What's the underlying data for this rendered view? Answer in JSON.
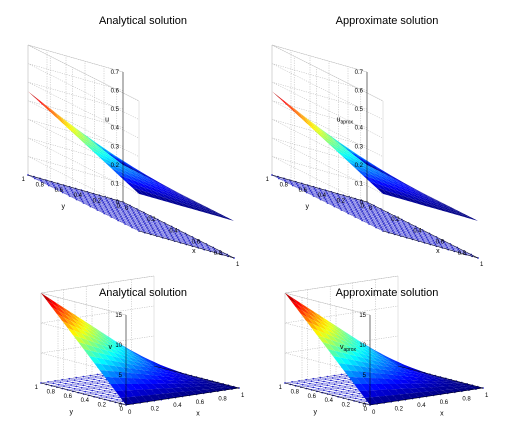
{
  "chart_data": [
    {
      "type": "surface",
      "title": "Analytical solution",
      "xlabel": "x",
      "ylabel": "y",
      "zlabel": "u",
      "xlim": [
        0,
        1
      ],
      "ylim": [
        0,
        1
      ],
      "zlim": [
        0,
        0.7
      ],
      "xticks": [
        "0",
        "0.2",
        "0.4",
        "0.6",
        "0.8",
        "1"
      ],
      "yticks": [
        "0",
        "0.2",
        "0.4",
        "0.6",
        "0.8",
        "1"
      ],
      "zticks": [
        "0",
        "0.1",
        "0.2",
        "0.3",
        "0.4",
        "0.5",
        "0.6",
        "0.7"
      ],
      "grid": true,
      "surface_range": [
        0.2,
        0.45
      ],
      "base_grid": "node mesh on the x-y plane",
      "colormap": "jet"
    },
    {
      "type": "surface",
      "title": "Approximate solution",
      "xlabel": "x",
      "ylabel": "y",
      "zlabel": "u_aprox",
      "zlabel_main": "u",
      "zlabel_sub": "aprox",
      "xlim": [
        0,
        1
      ],
      "ylim": [
        0,
        1
      ],
      "zlim": [
        0,
        0.7
      ],
      "xticks": [
        "0",
        "0.2",
        "0.4",
        "0.6",
        "0.8",
        "1"
      ],
      "yticks": [
        "0",
        "0.2",
        "0.4",
        "0.6",
        "0.8",
        "1"
      ],
      "zticks": [
        "0",
        "0.1",
        "0.2",
        "0.3",
        "0.4",
        "0.5",
        "0.6",
        "0.7"
      ],
      "grid": true,
      "surface_range": [
        0.2,
        0.45
      ],
      "base_grid": "node mesh on the x-y plane",
      "colormap": "jet"
    },
    {
      "type": "surface",
      "title": "Analytical solution",
      "xlabel": "x",
      "ylabel": "y",
      "zlabel": "v",
      "xlim": [
        0,
        1
      ],
      "ylim": [
        0,
        1
      ],
      "zlim": [
        0,
        15
      ],
      "xticks": [
        "0",
        "0.2",
        "0.4",
        "0.6",
        "0.8",
        "1"
      ],
      "yticks": [
        "0",
        "0.2",
        "0.4",
        "0.6",
        "0.8",
        "1"
      ],
      "zticks": [
        "0",
        "5",
        "10",
        "15"
      ],
      "grid": true,
      "surface_range": [
        0,
        15
      ],
      "base_grid": "node mesh on the x-y plane",
      "colormap": "jet"
    },
    {
      "type": "surface",
      "title": "Approximate solution",
      "xlabel": "x",
      "ylabel": "y",
      "zlabel": "v_aprox",
      "zlabel_main": "v",
      "zlabel_sub": "aprox",
      "xlim": [
        0,
        1
      ],
      "ylim": [
        0,
        1
      ],
      "zlim": [
        0,
        15
      ],
      "xticks": [
        "0",
        "0.2",
        "0.4",
        "0.6",
        "0.8",
        "1"
      ],
      "yticks": [
        "0",
        "0.2",
        "0.4",
        "0.6",
        "0.8",
        "1"
      ],
      "zticks": [
        "0",
        "5",
        "10",
        "15"
      ],
      "grid": true,
      "surface_range": [
        0,
        15
      ],
      "base_grid": "node mesh on the x-y plane",
      "colormap": "jet"
    }
  ]
}
